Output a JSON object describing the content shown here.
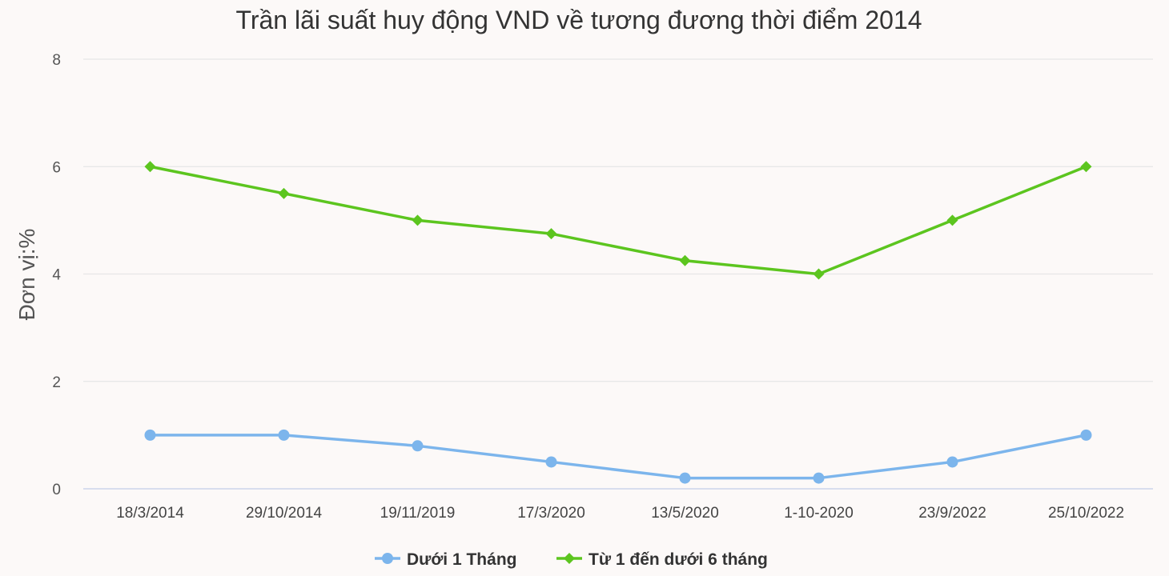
{
  "chart_data": {
    "type": "line",
    "title": "Trần lãi suất huy động VND về tương đương thời điểm 2014",
    "xlabel": "",
    "ylabel": "Đơn vị:%",
    "categories": [
      "18/3/2014",
      "29/10/2014",
      "19/11/2019",
      "17/3/2020",
      "13/5/2020",
      "1-10-2020",
      "23/9/2022",
      "25/10/2022"
    ],
    "ylim": [
      0,
      8
    ],
    "yticks": [
      "0",
      "2",
      "4",
      "6",
      "8"
    ],
    "grid": true,
    "legend_position": "bottom",
    "series": [
      {
        "name": "Dưới 1 Tháng",
        "values": [
          1,
          1,
          0.8,
          0.5,
          0.2,
          0.2,
          0.5,
          1
        ],
        "color": "#7cb5ec",
        "marker": "circle"
      },
      {
        "name": "Từ 1 đến dưới 6 tháng",
        "values": [
          6,
          5.5,
          5,
          4.75,
          4.25,
          4,
          5,
          6
        ],
        "color": "#5cc51f",
        "marker": "diamond"
      }
    ]
  }
}
